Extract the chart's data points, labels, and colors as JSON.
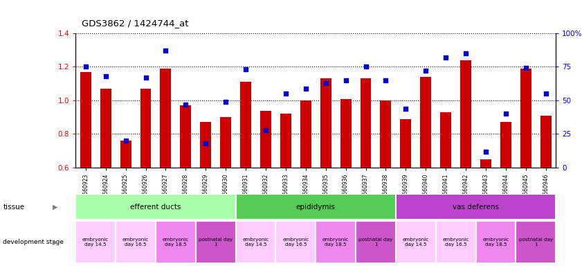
{
  "title": "GDS3862 / 1424744_at",
  "samples": [
    "GSM560923",
    "GSM560924",
    "GSM560925",
    "GSM560926",
    "GSM560927",
    "GSM560928",
    "GSM560929",
    "GSM560930",
    "GSM560931",
    "GSM560932",
    "GSM560933",
    "GSM560934",
    "GSM560935",
    "GSM560936",
    "GSM560937",
    "GSM560938",
    "GSM560939",
    "GSM560940",
    "GSM560941",
    "GSM560942",
    "GSM560943",
    "GSM560944",
    "GSM560945",
    "GSM560946"
  ],
  "transformed_count": [
    1.17,
    1.07,
    0.76,
    1.07,
    1.19,
    0.97,
    0.87,
    0.9,
    1.11,
    0.94,
    0.92,
    1.0,
    1.13,
    1.01,
    1.13,
    1.0,
    0.89,
    1.14,
    0.93,
    1.24,
    0.65,
    0.87,
    1.19,
    0.91
  ],
  "percentile_rank": [
    75,
    68,
    20,
    67,
    87,
    47,
    18,
    49,
    73,
    28,
    55,
    59,
    63,
    65,
    75,
    65,
    44,
    72,
    82,
    85,
    12,
    40,
    74,
    55
  ],
  "ylim_left": [
    0.6,
    1.4
  ],
  "ylim_right": [
    0,
    100
  ],
  "yticks_left": [
    0.6,
    0.8,
    1.0,
    1.2,
    1.4
  ],
  "yticks_right": [
    0,
    25,
    50,
    75,
    100
  ],
  "bar_color": "#cc0000",
  "dot_color": "#0000cc",
  "tissues": [
    {
      "label": "efferent ducts",
      "start": 0,
      "end": 8,
      "color": "#aaffaa"
    },
    {
      "label": "epididymis",
      "start": 8,
      "end": 16,
      "color": "#55cc55"
    },
    {
      "label": "vas deferens",
      "start": 16,
      "end": 24,
      "color": "#bb44cc"
    }
  ],
  "dev_stages": [
    {
      "label": "embryonic\nday 14.5",
      "start": 0,
      "end": 2,
      "color": "#ffccff"
    },
    {
      "label": "embryonic\nday 16.5",
      "start": 2,
      "end": 4,
      "color": "#ffccff"
    },
    {
      "label": "embryonic\nday 18.5",
      "start": 4,
      "end": 6,
      "color": "#ee88ee"
    },
    {
      "label": "postnatal day\n1",
      "start": 6,
      "end": 8,
      "color": "#cc55cc"
    },
    {
      "label": "embryonic\nday 14.5",
      "start": 8,
      "end": 10,
      "color": "#ffccff"
    },
    {
      "label": "embryonic\nday 16.5",
      "start": 10,
      "end": 12,
      "color": "#ffccff"
    },
    {
      "label": "embryonic\nday 18.5",
      "start": 12,
      "end": 14,
      "color": "#ee88ee"
    },
    {
      "label": "postnatal day\n1",
      "start": 14,
      "end": 16,
      "color": "#cc55cc"
    },
    {
      "label": "embryonic\nday 14.5",
      "start": 16,
      "end": 18,
      "color": "#ffccff"
    },
    {
      "label": "embryonic\nday 16.5",
      "start": 18,
      "end": 20,
      "color": "#ffccff"
    },
    {
      "label": "embryonic\nday 18.5",
      "start": 20,
      "end": 22,
      "color": "#ee88ee"
    },
    {
      "label": "postnatal day\n1",
      "start": 22,
      "end": 24,
      "color": "#cc55cc"
    }
  ]
}
